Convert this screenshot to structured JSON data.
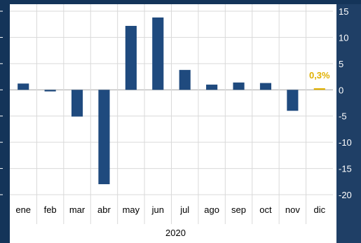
{
  "colors": {
    "background": "#1f3f66",
    "panel": "#ffffff",
    "bar": "#1f4a7e",
    "highlight": "#e0b000",
    "grid": "#d9d9d9"
  },
  "chart_data": {
    "type": "bar",
    "categories": [
      "ene",
      "feb",
      "mar",
      "abr",
      "may",
      "jun",
      "jul",
      "ago",
      "sep",
      "oct",
      "nov",
      "dic"
    ],
    "values": [
      1.2,
      -0.3,
      -5.1,
      -18.0,
      12.2,
      13.8,
      3.8,
      1.0,
      1.4,
      1.3,
      -4.0,
      0.3
    ],
    "highlight_index": 11,
    "highlight_label": "0,3%",
    "xlabel": "2020",
    "ylabel": "",
    "ylim": [
      -20,
      15
    ],
    "yticks": [
      15,
      10,
      5,
      0,
      -5,
      -10,
      -15,
      -20
    ],
    "grid": true,
    "yaxis_side": "right"
  }
}
